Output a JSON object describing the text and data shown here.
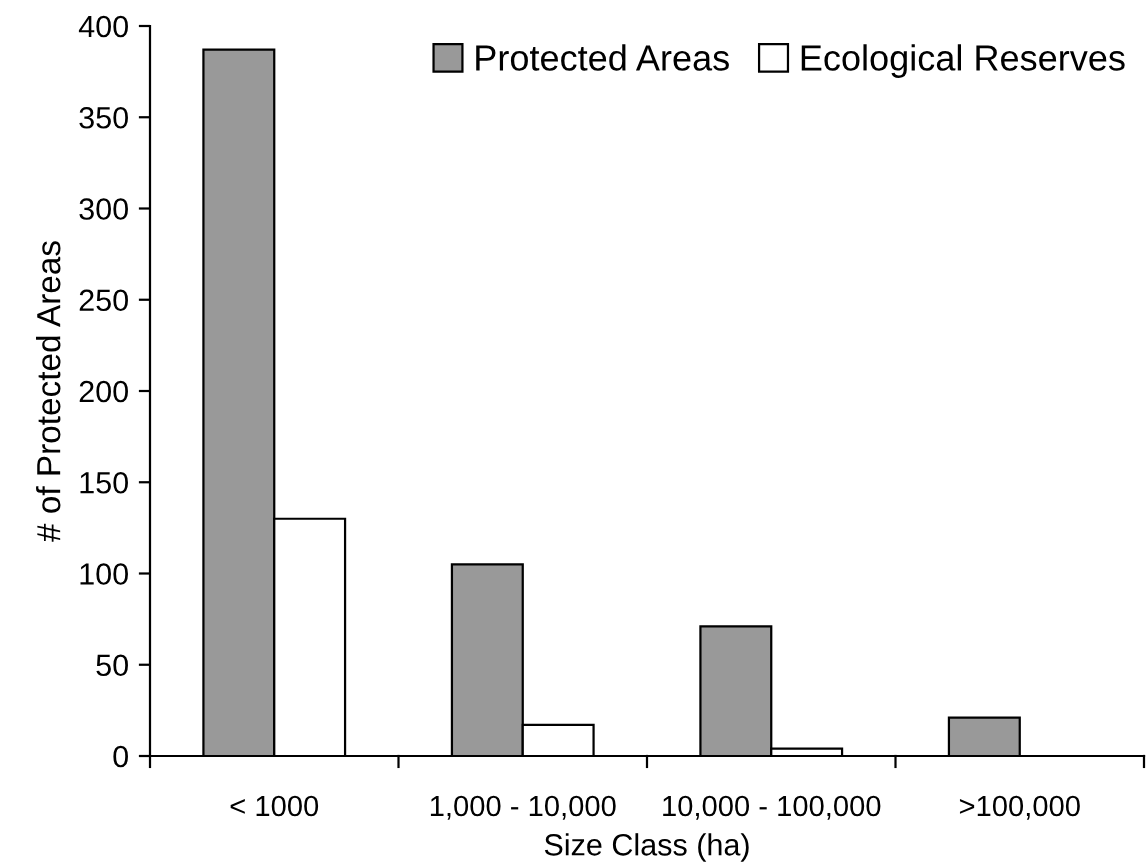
{
  "chart_data": {
    "type": "bar",
    "xlabel": "Size Class (ha)",
    "ylabel": "# of Protected Areas",
    "categories": [
      "< 1000",
      "1,000 - 10,000",
      "10,000 - 100,000",
      ">100,000"
    ],
    "series": [
      {
        "name": "Protected Areas",
        "color": "#999999",
        "values": [
          387,
          105,
          71,
          21
        ]
      },
      {
        "name": "Ecological Reserves",
        "color": "#ffffff",
        "values": [
          130,
          17,
          4,
          null
        ]
      }
    ],
    "ylim": [
      0,
      400
    ],
    "yticks": [
      0,
      50,
      100,
      150,
      200,
      250,
      300,
      350,
      400
    ],
    "grid": false,
    "legend": "top right"
  }
}
